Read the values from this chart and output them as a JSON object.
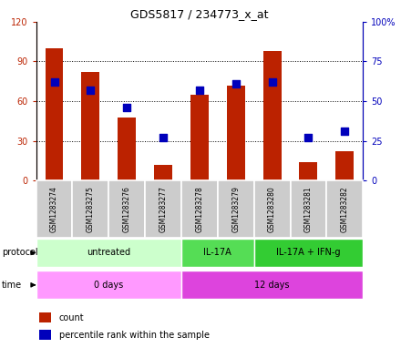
{
  "title": "GDS5817 / 234773_x_at",
  "samples": [
    "GSM1283274",
    "GSM1283275",
    "GSM1283276",
    "GSM1283277",
    "GSM1283278",
    "GSM1283279",
    "GSM1283280",
    "GSM1283281",
    "GSM1283282"
  ],
  "count_values": [
    100,
    82,
    48,
    12,
    65,
    72,
    98,
    14,
    22
  ],
  "percentile_values": [
    62,
    57,
    46,
    27,
    57,
    61,
    62,
    27,
    31
  ],
  "ylim_left": [
    0,
    120
  ],
  "ylim_right": [
    0,
    100
  ],
  "yticks_left": [
    0,
    30,
    60,
    90,
    120
  ],
  "ytick_labels_left": [
    "0",
    "30",
    "60",
    "90",
    "120"
  ],
  "yticks_right": [
    0,
    25,
    50,
    75,
    100
  ],
  "ytick_labels_right": [
    "0",
    "25",
    "50",
    "75",
    "100%"
  ],
  "bar_color": "#bb2200",
  "dot_color": "#0000bb",
  "sample_box_color": "#cccccc",
  "grid_color": "#000000",
  "count_bar_width": 0.5,
  "dot_size": 30,
  "prot_data": [
    {
      "label": "untreated",
      "xstart": -0.5,
      "xend": 3.5,
      "color": "#ccffcc"
    },
    {
      "label": "IL-17A",
      "xstart": 3.5,
      "xend": 5.5,
      "color": "#55dd55"
    },
    {
      "label": "IL-17A + IFN-g",
      "xstart": 5.5,
      "xend": 8.5,
      "color": "#33cc33"
    }
  ],
  "time_data": [
    {
      "label": "0 days",
      "xstart": -0.5,
      "xend": 3.5,
      "color": "#ff99ff"
    },
    {
      "label": "12 days",
      "xstart": 3.5,
      "xend": 8.5,
      "color": "#dd44dd"
    }
  ],
  "legend_items": [
    {
      "color": "#bb2200",
      "label": "count"
    },
    {
      "color": "#0000bb",
      "label": "percentile rank within the sample"
    }
  ]
}
